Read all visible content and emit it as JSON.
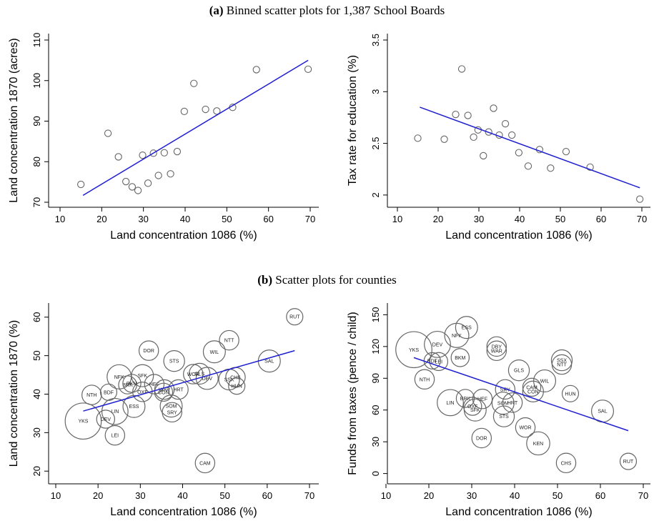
{
  "panels": {
    "a": {
      "letter": "(a)",
      "text": "Binned scatter plots for 1,387 School Boards"
    },
    "b": {
      "letter": "(b)",
      "text": "Scatter plots for counties"
    }
  },
  "colors": {
    "fit_line": "#1f1fd0",
    "marker": "#666666",
    "axis": "#000000"
  },
  "chart_data": [
    {
      "type": "scatter",
      "xlabel": "Land concentration 1086 (%)",
      "ylabel": "Land concentration 1870 (acres)",
      "xlim": [
        10,
        70
      ],
      "ylim": [
        70,
        110
      ],
      "xticks": [
        10,
        20,
        30,
        40,
        50,
        60,
        70
      ],
      "yticks": [
        70,
        80,
        90,
        100,
        110
      ],
      "points": [
        {
          "x": 15,
          "y": 74.4
        },
        {
          "x": 21.5,
          "y": 87
        },
        {
          "x": 24,
          "y": 81.2
        },
        {
          "x": 25.8,
          "y": 75.1
        },
        {
          "x": 27.3,
          "y": 73.8
        },
        {
          "x": 28.7,
          "y": 72.9
        },
        {
          "x": 29.8,
          "y": 81.6
        },
        {
          "x": 31.1,
          "y": 74.7
        },
        {
          "x": 32.4,
          "y": 82.1
        },
        {
          "x": 33.6,
          "y": 76.6
        },
        {
          "x": 35,
          "y": 82.2
        },
        {
          "x": 36.5,
          "y": 77
        },
        {
          "x": 38.1,
          "y": 82.5
        },
        {
          "x": 39.8,
          "y": 92.4
        },
        {
          "x": 42.1,
          "y": 99.3
        },
        {
          "x": 44.9,
          "y": 92.9
        },
        {
          "x": 47.6,
          "y": 92.5
        },
        {
          "x": 51.4,
          "y": 93.4
        },
        {
          "x": 57.1,
          "y": 102.7
        },
        {
          "x": 69.5,
          "y": 102.8
        }
      ],
      "fit": {
        "x": [
          15.5,
          69.5
        ],
        "y": [
          71.7,
          105
        ]
      }
    },
    {
      "type": "scatter",
      "xlabel": "Land concentration 1086 (%)",
      "ylabel": "Tax rate for education (%)",
      "xlim": [
        10,
        70
      ],
      "ylim": [
        1.93,
        3.5
      ],
      "xticks": [
        10,
        20,
        30,
        40,
        50,
        60,
        70
      ],
      "yticks": [
        2,
        2.5,
        3,
        3.5
      ],
      "points": [
        {
          "x": 15,
          "y": 2.55
        },
        {
          "x": 21.5,
          "y": 2.54
        },
        {
          "x": 24.3,
          "y": 2.78
        },
        {
          "x": 25.8,
          "y": 3.22
        },
        {
          "x": 27.3,
          "y": 2.77
        },
        {
          "x": 28.7,
          "y": 2.56
        },
        {
          "x": 29.8,
          "y": 2.63
        },
        {
          "x": 31.1,
          "y": 2.38
        },
        {
          "x": 32.4,
          "y": 2.61
        },
        {
          "x": 33.6,
          "y": 2.84
        },
        {
          "x": 35,
          "y": 2.58
        },
        {
          "x": 36.5,
          "y": 2.69
        },
        {
          "x": 38.1,
          "y": 2.58
        },
        {
          "x": 39.8,
          "y": 2.41
        },
        {
          "x": 42.1,
          "y": 2.28
        },
        {
          "x": 44.9,
          "y": 2.44
        },
        {
          "x": 47.6,
          "y": 2.26
        },
        {
          "x": 51.4,
          "y": 2.42
        },
        {
          "x": 57.3,
          "y": 2.27
        },
        {
          "x": 69.5,
          "y": 1.96
        }
      ],
      "fit": {
        "x": [
          15.5,
          69.5
        ],
        "y": [
          2.85,
          2.07
        ]
      }
    },
    {
      "type": "scatter",
      "xlabel": "Land concentration 1086 (%)",
      "ylabel": "Land concentration 1870 (%)",
      "xlim": [
        10,
        70
      ],
      "ylim": [
        18,
        62
      ],
      "xticks": [
        10,
        20,
        30,
        40,
        50,
        60,
        70
      ],
      "yticks": [
        20,
        30,
        40,
        50,
        60
      ],
      "points": [
        {
          "label": "RUT",
          "x": 66.5,
          "y": 60.1,
          "size": 0.3
        },
        {
          "label": "NTT",
          "x": 51,
          "y": 54,
          "size": 0.5
        },
        {
          "label": "DOR",
          "x": 32,
          "y": 51.3,
          "size": 0.5
        },
        {
          "label": "WIL",
          "x": 47.5,
          "y": 51,
          "size": 0.7
        },
        {
          "label": "STS",
          "x": 38,
          "y": 48.6,
          "size": 0.6
        },
        {
          "label": "SAL",
          "x": 60.5,
          "y": 48.6,
          "size": 0.7
        },
        {
          "label": "NFK",
          "x": 25,
          "y": 44.5,
          "size": 0.9
        },
        {
          "label": "SFK",
          "x": 30.5,
          "y": 44.8,
          "size": 0.7
        },
        {
          "label": "WOR",
          "x": 42.5,
          "y": 45.2,
          "size": 0.5
        },
        {
          "label": "GLS",
          "x": 44,
          "y": 45.3,
          "size": 0.6
        },
        {
          "label": "DEV",
          "x": 45.8,
          "y": 44.1,
          "size": 0.7
        },
        {
          "label": "SSX",
          "x": 51,
          "y": 43.8,
          "size": 0.6
        },
        {
          "label": "CHS",
          "x": 52.5,
          "y": 44.4,
          "size": 0.5
        },
        {
          "label": "HUN",
          "x": 52.8,
          "y": 42.1,
          "size": 0.3
        },
        {
          "label": "BRK",
          "x": 27,
          "y": 42.4,
          "size": 0.4
        },
        {
          "label": "BKM",
          "x": 28,
          "y": 42.8,
          "size": 0.4
        },
        {
          "label": "HEF",
          "x": 33.3,
          "y": 42.6,
          "size": 0.5
        },
        {
          "label": "OXF",
          "x": 30.5,
          "y": 40.6,
          "size": 0.5
        },
        {
          "label": "WAR",
          "x": 35.7,
          "y": 41.2,
          "size": 0.5
        },
        {
          "label": "CON",
          "x": 35.5,
          "y": 40.5,
          "size": 0.4
        },
        {
          "label": "HRT",
          "x": 39,
          "y": 41.2,
          "size": 0.5
        },
        {
          "label": "BDF",
          "x": 22.5,
          "y": 40.5,
          "size": 0.3
        },
        {
          "label": "NTH",
          "x": 18.5,
          "y": 39.8,
          "size": 0.5
        },
        {
          "label": "SOM",
          "x": 37.3,
          "y": 36.9,
          "size": 0.7
        },
        {
          "label": "SRY",
          "x": 37.5,
          "y": 35.3,
          "size": 0.5
        },
        {
          "label": "ESS",
          "x": 28.5,
          "y": 36.8,
          "size": 0.7
        },
        {
          "label": "LIN",
          "x": 24,
          "y": 35.5,
          "size": 1.1
        },
        {
          "label": "DEV",
          "x": 21.8,
          "y": 33.5,
          "size": 0.4
        },
        {
          "label": "YKS",
          "x": 16.5,
          "y": 33,
          "size": 2.2
        },
        {
          "label": "LEI",
          "x": 24,
          "y": 29.3,
          "size": 0.5
        },
        {
          "label": "CAM",
          "x": 45.3,
          "y": 22.1,
          "size": 0.5
        }
      ],
      "fit": {
        "x": [
          16.5,
          66.5
        ],
        "y": [
          35.6,
          51.3
        ]
      }
    },
    {
      "type": "scatter",
      "xlabel": "Land concentration 1086 (%)",
      "ylabel": "Funds from taxes (pence / child)",
      "xlim": [
        10,
        70
      ],
      "ylim": [
        -5,
        155
      ],
      "xticks": [
        10,
        20,
        30,
        40,
        50,
        60,
        70
      ],
      "yticks": [
        0,
        30,
        60,
        90,
        120,
        150
      ],
      "points": [
        {
          "label": "ESS",
          "x": 28.8,
          "y": 138,
          "size": 0.7
        },
        {
          "label": "NFK",
          "x": 26.5,
          "y": 130.5,
          "size": 0.9
        },
        {
          "label": "DEV",
          "x": 22,
          "y": 122,
          "size": 1.1
        },
        {
          "label": "YKS",
          "x": 16.5,
          "y": 117,
          "size": 2.2
        },
        {
          "label": "DBY",
          "x": 35.8,
          "y": 120,
          "size": 0.5
        },
        {
          "label": "WAR",
          "x": 35.8,
          "y": 116,
          "size": 0.5
        },
        {
          "label": "BKM",
          "x": 27.3,
          "y": 109.5,
          "size": 0.4
        },
        {
          "label": "BDF",
          "x": 20.8,
          "y": 106.5,
          "size": 0.3
        },
        {
          "label": "LEI",
          "x": 22.3,
          "y": 105.8,
          "size": 0.4
        },
        {
          "label": "SSX",
          "x": 51,
          "y": 107,
          "size": 0.6
        },
        {
          "label": "NTT",
          "x": 51,
          "y": 103,
          "size": 0.5
        },
        {
          "label": "GLS",
          "x": 41,
          "y": 97.5,
          "size": 0.6
        },
        {
          "label": "NTH",
          "x": 19,
          "y": 89,
          "size": 0.5
        },
        {
          "label": "WIL",
          "x": 47,
          "y": 87.5,
          "size": 0.7
        },
        {
          "label": "CAM",
          "x": 44,
          "y": 81.5,
          "size": 0.4
        },
        {
          "label": "CON",
          "x": 44.3,
          "y": 77.5,
          "size": 0.6
        },
        {
          "label": "SRY",
          "x": 37.8,
          "y": 79.5,
          "size": 0.5
        },
        {
          "label": "HUN",
          "x": 53,
          "y": 75.5,
          "size": 0.3
        },
        {
          "label": "BRK",
          "x": 28.5,
          "y": 71,
          "size": 0.4
        },
        {
          "label": "HEF",
          "x": 32.5,
          "y": 70.5,
          "size": 0.5
        },
        {
          "label": "LIN",
          "x": 25,
          "y": 67,
          "size": 1.1
        },
        {
          "label": "SOM",
          "x": 37.3,
          "y": 66.5,
          "size": 0.7
        },
        {
          "label": "HRT",
          "x": 39.5,
          "y": 67,
          "size": 0.5
        },
        {
          "label": "OXF",
          "x": 30.2,
          "y": 63.5,
          "size": 0.4
        },
        {
          "label": "SFK",
          "x": 30.8,
          "y": 60,
          "size": 0.7
        },
        {
          "label": "SAL",
          "x": 60.5,
          "y": 59,
          "size": 0.7
        },
        {
          "label": "STS",
          "x": 37.5,
          "y": 54,
          "size": 0.6
        },
        {
          "label": "WOR",
          "x": 42.5,
          "y": 43.5,
          "size": 0.5
        },
        {
          "label": "DOR",
          "x": 32.3,
          "y": 33.5,
          "size": 0.5
        },
        {
          "label": "KEN",
          "x": 45.5,
          "y": 28.5,
          "size": 0.8
        },
        {
          "label": "CHS",
          "x": 52,
          "y": 10,
          "size": 0.5
        },
        {
          "label": "RUT",
          "x": 66.5,
          "y": 11.5,
          "size": 0.3
        }
      ],
      "fit": {
        "x": [
          16.5,
          66.5
        ],
        "y": [
          109.5,
          40.5
        ]
      }
    }
  ]
}
